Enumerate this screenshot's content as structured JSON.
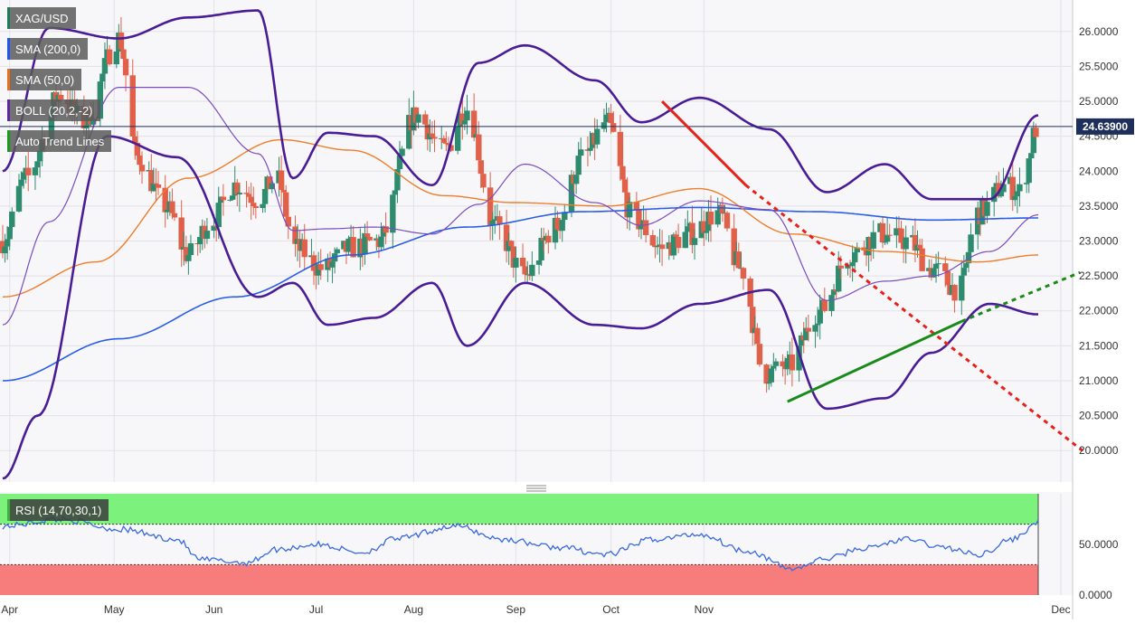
{
  "chart_data": {
    "type": "candlestick",
    "symbol": "XAG/USD",
    "last_price_label": "24.63900",
    "last_price": 24.639,
    "x_ticks": [
      "Apr",
      "May",
      "Jun",
      "Jul",
      "Aug",
      "Sep",
      "Oct",
      "Nov",
      "Dec"
    ],
    "y_ticks": [
      "26.0000",
      "25.5000",
      "25.0000",
      "24.5000",
      "24.0000",
      "23.5000",
      "23.0000",
      "22.5000",
      "22.0000",
      "21.5000",
      "21.0000",
      "20.5000",
      "20.0000"
    ],
    "ylim": [
      19.55,
      26.45
    ],
    "legend": [
      {
        "label": "XAG/USD",
        "color": "#1f7a5a"
      },
      {
        "label": "SMA (200,0)",
        "color": "#2255ee"
      },
      {
        "label": "SMA (50,0)",
        "color": "#e8701a"
      },
      {
        "label": "BOLL (20,2,-2)",
        "color": "#5b2aa0"
      },
      {
        "label": "Auto Trend Lines",
        "color": "#1a9a1a"
      }
    ],
    "colors": {
      "up": "#2e8b6e",
      "down": "#e0604a",
      "sma200": "#2a5de8",
      "sma50": "#ef7d2a",
      "boll": "#4a1d96",
      "boll_mid": "#7a4cc0",
      "trend_up": "#1a8a1a",
      "trend_down": "#e8201a",
      "rsi_line": "#3a6ae0",
      "rsi_overbought_zone": "#7cf27c",
      "rsi_oversold_zone": "#f77c7c"
    },
    "candle_key_points": [
      [
        0,
        23.0
      ],
      [
        10,
        23.9
      ],
      [
        25,
        25.1
      ],
      [
        35,
        24.7
      ],
      [
        50,
        25.9
      ],
      [
        58,
        24.2
      ],
      [
        70,
        23.5
      ],
      [
        80,
        22.8
      ],
      [
        90,
        23.3
      ],
      [
        100,
        23.8
      ],
      [
        110,
        23.6
      ],
      [
        118,
        23.9
      ],
      [
        126,
        22.9
      ],
      [
        138,
        22.6
      ],
      [
        150,
        22.9
      ],
      [
        162,
        23.0
      ],
      [
        178,
        24.8
      ],
      [
        190,
        24.3
      ],
      [
        200,
        24.9
      ],
      [
        212,
        23.2
      ],
      [
        225,
        22.5
      ],
      [
        238,
        23.2
      ],
      [
        250,
        24.2
      ],
      [
        260,
        24.7
      ],
      [
        272,
        23.3
      ],
      [
        284,
        22.9
      ],
      [
        296,
        23.1
      ],
      [
        308,
        23.4
      ],
      [
        318,
        22.6
      ],
      [
        328,
        21.1
      ],
      [
        338,
        21.2
      ],
      [
        352,
        22.0
      ],
      [
        365,
        22.8
      ],
      [
        378,
        23.1
      ],
      [
        390,
        23.0
      ],
      [
        400,
        22.6
      ],
      [
        412,
        22.3
      ],
      [
        420,
        23.4
      ],
      [
        432,
        23.8
      ],
      [
        438,
        23.7
      ],
      [
        446,
        24.64
      ]
    ],
    "sma200_key_points": [
      [
        0,
        21.0
      ],
      [
        50,
        21.6
      ],
      [
        100,
        22.2
      ],
      [
        150,
        22.8
      ],
      [
        200,
        23.2
      ],
      [
        250,
        23.42
      ],
      [
        300,
        23.48
      ],
      [
        350,
        23.42
      ],
      [
        400,
        23.3
      ],
      [
        446,
        23.33
      ]
    ],
    "sma50_key_points": [
      [
        0,
        22.2
      ],
      [
        40,
        22.7
      ],
      [
        80,
        23.9
      ],
      [
        120,
        24.45
      ],
      [
        150,
        24.3
      ],
      [
        190,
        23.65
      ],
      [
        220,
        23.55
      ],
      [
        260,
        23.5
      ],
      [
        300,
        23.75
      ],
      [
        340,
        23.1
      ],
      [
        380,
        22.85
      ],
      [
        420,
        22.7
      ],
      [
        446,
        22.8
      ]
    ],
    "boll_upper_key_points": [
      [
        0,
        24.0
      ],
      [
        20,
        26.05
      ],
      [
        50,
        25.9
      ],
      [
        80,
        26.2
      ],
      [
        110,
        26.3
      ],
      [
        125,
        23.9
      ],
      [
        140,
        24.55
      ],
      [
        160,
        24.5
      ],
      [
        185,
        23.8
      ],
      [
        205,
        25.55
      ],
      [
        225,
        25.8
      ],
      [
        255,
        25.3
      ],
      [
        275,
        24.7
      ],
      [
        300,
        25.05
      ],
      [
        330,
        24.6
      ],
      [
        355,
        23.7
      ],
      [
        380,
        24.1
      ],
      [
        400,
        23.6
      ],
      [
        425,
        23.6
      ],
      [
        446,
        24.8
      ]
    ],
    "boll_lower_key_points": [
      [
        0,
        19.6
      ],
      [
        15,
        20.5
      ],
      [
        45,
        24.5
      ],
      [
        75,
        24.2
      ],
      [
        110,
        22.2
      ],
      [
        125,
        22.4
      ],
      [
        140,
        21.8
      ],
      [
        160,
        21.9
      ],
      [
        185,
        22.4
      ],
      [
        200,
        21.5
      ],
      [
        225,
        22.4
      ],
      [
        255,
        21.8
      ],
      [
        275,
        21.75
      ],
      [
        300,
        22.1
      ],
      [
        330,
        22.3
      ],
      [
        355,
        20.6
      ],
      [
        380,
        20.75
      ],
      [
        400,
        21.4
      ],
      [
        425,
        22.1
      ],
      [
        446,
        21.95
      ]
    ],
    "trend_lines": [
      {
        "kind": "down",
        "solid_from": [
          284,
          25.0
        ],
        "solid_to": [
          320,
          23.8
        ],
        "dashed_to": [
          465,
          20.0
        ]
      },
      {
        "kind": "up",
        "solid_from": [
          338,
          20.7
        ],
        "solid_to": [
          413,
          21.85
        ],
        "dashed_to": [
          464,
          22.55
        ]
      }
    ],
    "rsi": {
      "label": "RSI (14,70,30,1)",
      "upper": 70,
      "lower": 30,
      "y_ticks": [
        "50.0000",
        "0.0000"
      ],
      "key_points": [
        [
          0,
          68
        ],
        [
          25,
          75
        ],
        [
          50,
          65
        ],
        [
          75,
          55
        ],
        [
          85,
          35
        ],
        [
          105,
          32
        ],
        [
          118,
          45
        ],
        [
          135,
          50
        ],
        [
          155,
          42
        ],
        [
          170,
          56
        ],
        [
          195,
          68
        ],
        [
          215,
          55
        ],
        [
          240,
          47
        ],
        [
          260,
          40
        ],
        [
          280,
          55
        ],
        [
          300,
          60
        ],
        [
          320,
          44
        ],
        [
          340,
          26
        ],
        [
          355,
          36
        ],
        [
          370,
          46
        ],
        [
          390,
          55
        ],
        [
          405,
          47
        ],
        [
          420,
          40
        ],
        [
          435,
          55
        ],
        [
          446,
          72
        ]
      ]
    }
  }
}
